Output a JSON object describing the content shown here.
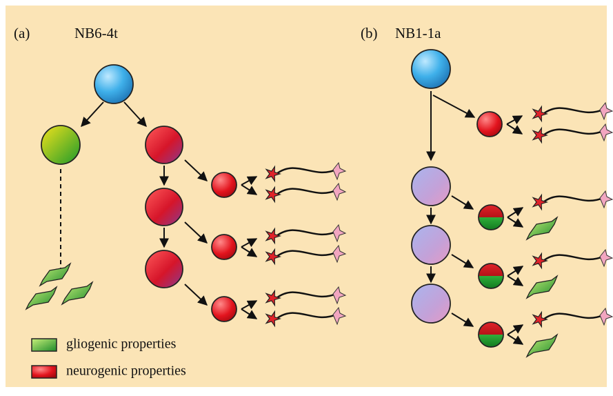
{
  "panels": [
    {
      "label": "(a)",
      "title": "NB6-4t"
    },
    {
      "label": "(b)",
      "title": "NB1-1a"
    }
  ],
  "legend": [
    "gliogenic properties",
    "neurogenic properties"
  ]
}
